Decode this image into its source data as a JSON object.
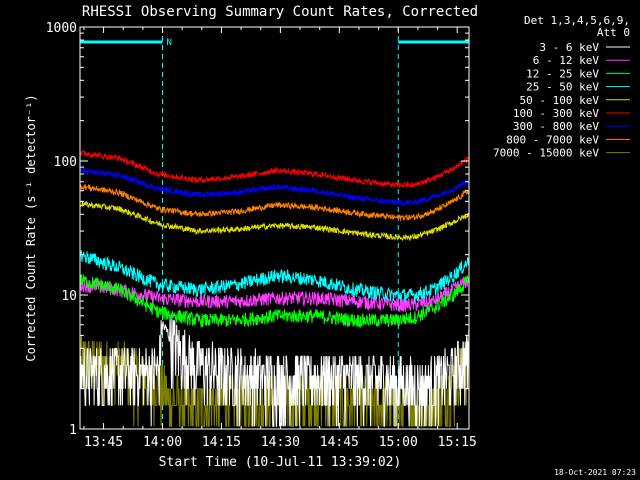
{
  "chart_data": {
    "type": "line",
    "title": "RHESSI Observing Summary Count Rates, Corrected",
    "xlabel": "Start Time (10-Jul-11 13:39:02)",
    "ylabel": "Corrected Count Rate (s⁻¹ detector⁻¹)",
    "y_scale": "log",
    "ylim": [
      1,
      1000
    ],
    "xlim_minutes_after_start": [
      0,
      99
    ],
    "x_unit": "minutes after 13:39:02",
    "x_ticks": [
      {
        "label": "13:45",
        "minute": 6
      },
      {
        "label": "14:00",
        "minute": 21
      },
      {
        "label": "14:15",
        "minute": 36
      },
      {
        "label": "14:30",
        "minute": 51
      },
      {
        "label": "14:45",
        "minute": 66
      },
      {
        "label": "15:00",
        "minute": 81
      },
      {
        "label": "15:15",
        "minute": 96
      }
    ],
    "y_ticks": [
      {
        "label": "1",
        "value": 1
      },
      {
        "label": "10",
        "value": 10
      },
      {
        "label": "100",
        "value": 100
      },
      {
        "label": "1000",
        "value": 1000
      }
    ],
    "legend_header": [
      "Det 1,3,4,5,6,9,",
      "Att 0"
    ],
    "legend_position": "right",
    "night_intervals_minutes": [
      [
        0,
        21
      ],
      [
        81,
        99
      ]
    ],
    "flag_label": "N",
    "series": [
      {
        "name": "3 - 6 keV",
        "color": "#ffffff",
        "points": [
          [
            0,
            2.7
          ],
          [
            10,
            2.7
          ],
          [
            20,
            2.7
          ],
          [
            21,
            6
          ],
          [
            25,
            4
          ],
          [
            30,
            3
          ],
          [
            40,
            2.6
          ],
          [
            50,
            2.4
          ],
          [
            60,
            2.4
          ],
          [
            70,
            2.4
          ],
          [
            80,
            2.3
          ],
          [
            88,
            2.1
          ],
          [
            95,
            2.8
          ],
          [
            99,
            3.5
          ]
        ]
      },
      {
        "name": "6 - 12 keV",
        "color": "#ff3cff",
        "points": [
          [
            0,
            12
          ],
          [
            10,
            11
          ],
          [
            20,
            9.5
          ],
          [
            30,
            9
          ],
          [
            40,
            9
          ],
          [
            50,
            9.5
          ],
          [
            60,
            9.5
          ],
          [
            70,
            9
          ],
          [
            80,
            8.5
          ],
          [
            85,
            8.5
          ],
          [
            90,
            9
          ],
          [
            95,
            11
          ],
          [
            99,
            13
          ]
        ]
      },
      {
        "name": "12 - 25 keV",
        "color": "#00ff00",
        "points": [
          [
            0,
            13
          ],
          [
            10,
            11
          ],
          [
            20,
            7.5
          ],
          [
            30,
            6.5
          ],
          [
            40,
            6.5
          ],
          [
            50,
            7
          ],
          [
            60,
            7
          ],
          [
            70,
            6.5
          ],
          [
            80,
            6.5
          ],
          [
            85,
            6.8
          ],
          [
            90,
            8
          ],
          [
            95,
            10
          ],
          [
            99,
            13
          ]
        ]
      },
      {
        "name": "25 - 50 keV",
        "color": "#00ffff",
        "points": [
          [
            0,
            20
          ],
          [
            10,
            16
          ],
          [
            20,
            12
          ],
          [
            30,
            11
          ],
          [
            40,
            12
          ],
          [
            50,
            14
          ],
          [
            60,
            13
          ],
          [
            70,
            11
          ],
          [
            80,
            10
          ],
          [
            85,
            10
          ],
          [
            90,
            11
          ],
          [
            95,
            14
          ],
          [
            99,
            18
          ]
        ]
      },
      {
        "name": "50 - 100 keV",
        "color": "#dddd00",
        "points": [
          [
            0,
            48
          ],
          [
            10,
            44
          ],
          [
            20,
            34
          ],
          [
            30,
            30
          ],
          [
            40,
            31
          ],
          [
            50,
            33
          ],
          [
            60,
            32
          ],
          [
            70,
            29
          ],
          [
            80,
            27
          ],
          [
            85,
            27
          ],
          [
            90,
            30
          ],
          [
            95,
            35
          ],
          [
            99,
            40
          ]
        ]
      },
      {
        "name": "100 - 300 keV",
        "color": "#ff0000",
        "points": [
          [
            0,
            115
          ],
          [
            10,
            105
          ],
          [
            20,
            80
          ],
          [
            30,
            72
          ],
          [
            40,
            76
          ],
          [
            50,
            85
          ],
          [
            60,
            80
          ],
          [
            70,
            72
          ],
          [
            80,
            66
          ],
          [
            85,
            66
          ],
          [
            90,
            74
          ],
          [
            95,
            88
          ],
          [
            99,
            105
          ]
        ]
      },
      {
        "name": "300 - 800 keV",
        "color": "#0000ff",
        "points": [
          [
            0,
            85
          ],
          [
            10,
            78
          ],
          [
            20,
            62
          ],
          [
            30,
            56
          ],
          [
            40,
            58
          ],
          [
            50,
            64
          ],
          [
            60,
            60
          ],
          [
            70,
            53
          ],
          [
            80,
            49
          ],
          [
            85,
            49
          ],
          [
            90,
            54
          ],
          [
            95,
            62
          ],
          [
            99,
            72
          ]
        ]
      },
      {
        "name": "800 - 7000 keV",
        "color": "#ff8000",
        "points": [
          [
            0,
            65
          ],
          [
            10,
            58
          ],
          [
            20,
            44
          ],
          [
            30,
            40
          ],
          [
            40,
            42
          ],
          [
            50,
            47
          ],
          [
            60,
            45
          ],
          [
            70,
            41
          ],
          [
            80,
            38
          ],
          [
            85,
            38
          ],
          [
            90,
            42
          ],
          [
            95,
            50
          ],
          [
            99,
            60
          ]
        ]
      },
      {
        "name": "7000 - 15000 keV",
        "color": "#808000",
        "points": [
          [
            0,
            3.3
          ],
          [
            10,
            2.9
          ],
          [
            20,
            2.2
          ],
          [
            23,
            1.6
          ],
          [
            30,
            1.5
          ],
          [
            40,
            1.7
          ],
          [
            50,
            1.6
          ],
          [
            60,
            1.7
          ],
          [
            70,
            1.6
          ],
          [
            80,
            1.5
          ],
          [
            88,
            1.4
          ],
          [
            95,
            2.3
          ],
          [
            99,
            3.5
          ]
        ]
      }
    ]
  },
  "timestamp": "18-Oct-2021 07:23"
}
